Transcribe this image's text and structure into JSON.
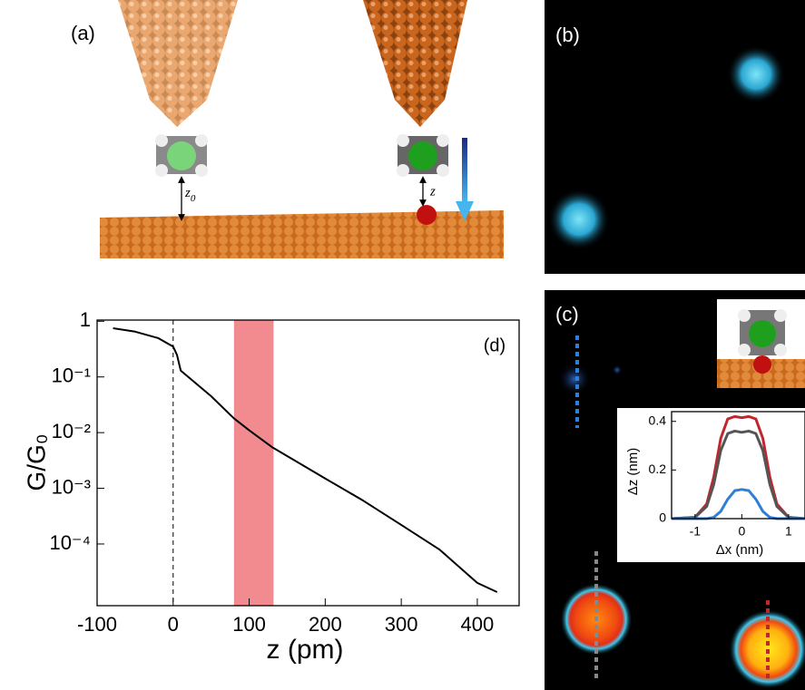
{
  "panels": {
    "a": {
      "label": "(a)",
      "z0_base": "z",
      "z0_sub": "0",
      "z": "z"
    },
    "b": {
      "label": "(b)"
    },
    "c": {
      "label": "(c)"
    }
  },
  "chart_data": [
    {
      "type": "line",
      "panel_label": "(d)",
      "xlabel": "z (pm)",
      "ylabel": "G/G₀",
      "log_y": true,
      "x": [
        -79,
        -50,
        -20,
        0,
        5,
        10,
        50,
        80,
        100,
        130,
        200,
        250,
        300,
        350,
        400,
        426
      ],
      "series": [
        {
          "color": "#000000",
          "values": [
            0.75,
            0.65,
            0.5,
            0.35,
            0.25,
            0.13,
            0.045,
            0.018,
            0.011,
            0.0055,
            0.0015,
            0.0006,
            0.00022,
            8e-05,
            2e-05,
            1.37e-05
          ]
        }
      ],
      "xlim": [
        -100,
        455
      ],
      "ylim": [
        7.8e-06,
        1.05
      ],
      "xticks": [
        -100,
        0,
        100,
        200,
        300,
        400
      ],
      "yticks": [
        1,
        {
          "value": 0.1,
          "label": "10⁻¹"
        },
        {
          "value": 0.01,
          "label": "10⁻²"
        },
        {
          "value": 0.001,
          "label": "10⁻³"
        },
        {
          "value": 0.0001,
          "label": "10⁻⁴"
        }
      ],
      "highlight": {
        "range": [
          80,
          132
        ],
        "color": "#f28b8f"
      },
      "vline": 0
    },
    {
      "type": "line",
      "xlabel": "Δx (nm)",
      "ylabel": "Δz (nm)",
      "log_y": false,
      "x": [
        -1.5,
        -1.0,
        -0.75,
        -0.6,
        -0.45,
        -0.3,
        -0.15,
        0,
        0.15,
        0.3,
        0.45,
        0.6,
        0.75,
        1.0,
        1.35
      ],
      "series": [
        {
          "color": "#c0272d",
          "values": [
            0,
            0.005,
            0.06,
            0.17,
            0.33,
            0.41,
            0.42,
            0.415,
            0.42,
            0.41,
            0.33,
            0.17,
            0.06,
            0.005,
            0
          ]
        },
        {
          "color": "#555555",
          "values": [
            0,
            0.005,
            0.05,
            0.14,
            0.28,
            0.35,
            0.36,
            0.355,
            0.36,
            0.35,
            0.28,
            0.14,
            0.05,
            0.005,
            0
          ]
        },
        {
          "color": "#2f7fd6",
          "values": [
            0,
            0,
            0,
            0.005,
            0.03,
            0.08,
            0.115,
            0.12,
            0.115,
            0.08,
            0.03,
            0.005,
            0,
            0,
            0
          ]
        }
      ],
      "xlim": [
        -1.5,
        1.35
      ],
      "ylim": [
        0,
        0.44
      ],
      "xticks": [
        -1,
        0,
        1
      ],
      "yticks": [
        0,
        0.2,
        0.4
      ]
    }
  ]
}
